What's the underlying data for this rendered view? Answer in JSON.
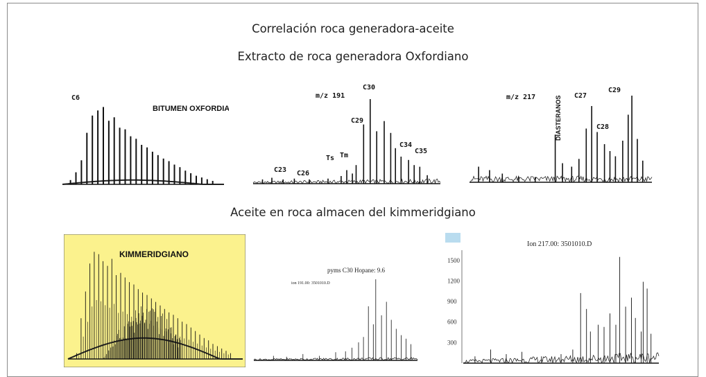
{
  "title": "Correlación roca generadora-aceite",
  "subtitle_top": "Extracto de roca generadora Oxfordiano",
  "subtitle_bottom": "Aceite en roca almacen del kimmeridgiano",
  "colors": {
    "yellow_panel": "#fbf28d",
    "trace": "#111111",
    "frame": "#8a8a8a"
  },
  "chart_data": [
    {
      "type": "line",
      "label_corner": "C6",
      "annotation": "BITUMEN OXFORDIANO",
      "peak_heights": [
        0.05,
        0.14,
        0.28,
        0.6,
        0.8,
        0.86,
        0.9,
        0.74,
        0.78,
        0.66,
        0.64,
        0.56,
        0.53,
        0.46,
        0.43,
        0.38,
        0.34,
        0.3,
        0.27,
        0.23,
        0.2,
        0.16,
        0.13,
        0.1,
        0.08,
        0.06,
        0.04
      ]
    },
    {
      "type": "line",
      "label_corner": "m/z 191",
      "peak_labels": [
        "C23",
        "C26",
        "Ts",
        "Tm",
        "C29",
        "C30",
        "C34",
        "C35"
      ],
      "peaks": [
        [
          0.05,
          0.05
        ],
        [
          0.1,
          0.07
        ],
        [
          0.16,
          0.05
        ],
        [
          0.22,
          0.06
        ],
        [
          0.3,
          0.05
        ],
        [
          0.4,
          0.06
        ],
        [
          0.47,
          0.09
        ],
        [
          0.5,
          0.16
        ],
        [
          0.53,
          0.12
        ],
        [
          0.55,
          0.22
        ],
        [
          0.59,
          0.7
        ],
        [
          0.625,
          1.0
        ],
        [
          0.66,
          0.62
        ],
        [
          0.7,
          0.74
        ],
        [
          0.735,
          0.6
        ],
        [
          0.76,
          0.42
        ],
        [
          0.79,
          0.32
        ],
        [
          0.83,
          0.28
        ],
        [
          0.86,
          0.22
        ],
        [
          0.89,
          0.2
        ],
        [
          0.93,
          0.1
        ]
      ]
    },
    {
      "type": "line",
      "label_corner": "m/z 217",
      "peak_labels": [
        "DIASTERANOS",
        "C27",
        "C28",
        "C29"
      ],
      "peaks": [
        [
          0.05,
          0.18
        ],
        [
          0.11,
          0.14
        ],
        [
          0.18,
          0.1
        ],
        [
          0.27,
          0.06
        ],
        [
          0.36,
          0.06
        ],
        [
          0.47,
          0.55
        ],
        [
          0.51,
          0.22
        ],
        [
          0.56,
          0.18
        ],
        [
          0.6,
          0.27
        ],
        [
          0.64,
          0.62
        ],
        [
          0.67,
          0.88
        ],
        [
          0.7,
          0.58
        ],
        [
          0.74,
          0.44
        ],
        [
          0.77,
          0.36
        ],
        [
          0.8,
          0.3
        ],
        [
          0.84,
          0.48
        ],
        [
          0.87,
          0.78
        ],
        [
          0.89,
          1.0
        ],
        [
          0.92,
          0.5
        ],
        [
          0.95,
          0.25
        ]
      ]
    },
    {
      "type": "line",
      "annotation": "KIMMERIDGIANO",
      "peak_heights": [
        0.05,
        0.35,
        0.58,
        0.82,
        0.92,
        0.9,
        0.84,
        0.8,
        0.86,
        0.72,
        0.74,
        0.7,
        0.66,
        0.64,
        0.6,
        0.57,
        0.55,
        0.52,
        0.49,
        0.46,
        0.43,
        0.4,
        0.38,
        0.35,
        0.32,
        0.3,
        0.27,
        0.24,
        0.21,
        0.18,
        0.16,
        0.13,
        0.11,
        0.09,
        0.07,
        0.05
      ]
    },
    {
      "type": "line",
      "annotation": "pyms C30 Hopane: 9.6",
      "annotation_small": "ion 191.00: 3501010.D",
      "peaks": [
        [
          0.12,
          0.05
        ],
        [
          0.2,
          0.04
        ],
        [
          0.3,
          0.07
        ],
        [
          0.4,
          0.05
        ],
        [
          0.5,
          0.09
        ],
        [
          0.56,
          0.1
        ],
        [
          0.6,
          0.14
        ],
        [
          0.64,
          0.2
        ],
        [
          0.67,
          0.26
        ],
        [
          0.7,
          0.6
        ],
        [
          0.73,
          0.4
        ],
        [
          0.745,
          0.9
        ],
        [
          0.78,
          0.5
        ],
        [
          0.81,
          0.65
        ],
        [
          0.84,
          0.45
        ],
        [
          0.87,
          0.35
        ],
        [
          0.9,
          0.28
        ],
        [
          0.93,
          0.24
        ],
        [
          0.96,
          0.18
        ]
      ]
    },
    {
      "type": "line",
      "annotation": "Ion 217.00: 3501010.D",
      "ytick_labels": [
        "300",
        "600",
        "900",
        "1200",
        "1500"
      ],
      "ylim": [
        0,
        1650
      ],
      "peaks": [
        [
          0.06,
          0.06
        ],
        [
          0.14,
          0.12
        ],
        [
          0.22,
          0.08
        ],
        [
          0.3,
          0.1
        ],
        [
          0.4,
          0.06
        ],
        [
          0.5,
          0.08
        ],
        [
          0.56,
          0.12
        ],
        [
          0.6,
          0.62
        ],
        [
          0.63,
          0.48
        ],
        [
          0.65,
          0.28
        ],
        [
          0.69,
          0.34
        ],
        [
          0.72,
          0.32
        ],
        [
          0.75,
          0.44
        ],
        [
          0.78,
          0.34
        ],
        [
          0.8,
          0.94
        ],
        [
          0.83,
          0.5
        ],
        [
          0.86,
          0.58
        ],
        [
          0.88,
          0.4
        ],
        [
          0.91,
          0.28
        ],
        [
          0.92,
          0.72
        ],
        [
          0.94,
          0.66
        ],
        [
          0.96,
          0.26
        ]
      ]
    }
  ]
}
